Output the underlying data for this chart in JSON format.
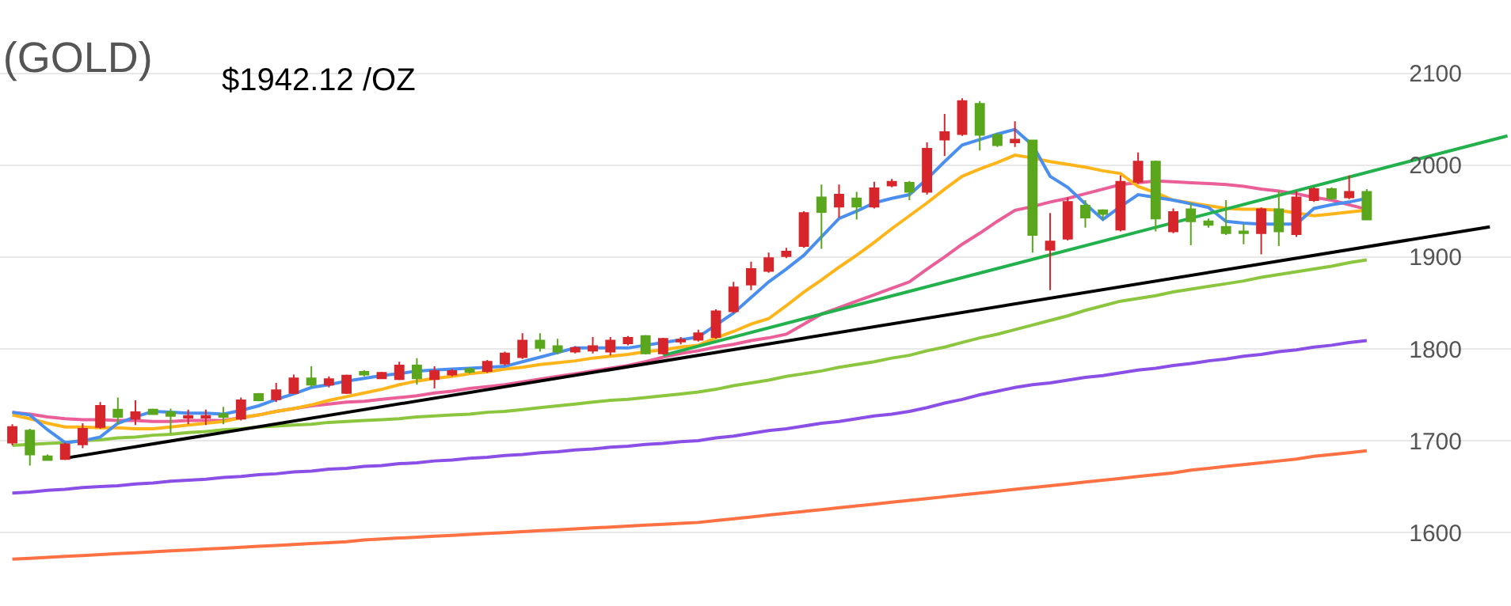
{
  "chart_data": {
    "type": "candlestick",
    "title": "(GOLD)",
    "annotations": [
      "$1942.12 /OZ"
    ],
    "categories": [
      null,
      null,
      null,
      null,
      null,
      null,
      null,
      null,
      null,
      null,
      null,
      null,
      null,
      null,
      null,
      null,
      null,
      null,
      null,
      null,
      null,
      null,
      null,
      null,
      null,
      null,
      null,
      null,
      null,
      null,
      null,
      null,
      null,
      null,
      null,
      null,
      null,
      null,
      null,
      null,
      null,
      null,
      null,
      null,
      null,
      null,
      null,
      null,
      null,
      null,
      null,
      null,
      null,
      null,
      null,
      null,
      null,
      null,
      null,
      null,
      null,
      null,
      null,
      null,
      null,
      null,
      null,
      null,
      null,
      null,
      null,
      null,
      null,
      null,
      null,
      null,
      null,
      null,
      null,
      null,
      null,
      null,
      null,
      null,
      null,
      null
    ],
    "ohlc": [
      [
        1698,
        1718,
        1695,
        1715
      ],
      [
        1711,
        1713,
        1673,
        1685
      ],
      [
        1683,
        1685,
        1678,
        1679
      ],
      [
        1680,
        1698,
        1679,
        1696
      ],
      [
        1696,
        1719,
        1692,
        1713
      ],
      [
        1715,
        1742,
        1713,
        1738
      ],
      [
        1734,
        1747,
        1718,
        1726
      ],
      [
        1724,
        1744,
        1717,
        1731
      ],
      [
        1734,
        1735,
        1728,
        1729
      ],
      [
        1731,
        1735,
        1708,
        1727
      ],
      [
        1725,
        1734,
        1718,
        1727
      ],
      [
        1725,
        1734,
        1717,
        1727
      ],
      [
        1729,
        1737,
        1718,
        1726
      ],
      [
        1724,
        1747,
        1722,
        1744
      ],
      [
        1751,
        1752,
        1743,
        1744
      ],
      [
        1745,
        1763,
        1742,
        1755
      ],
      [
        1752,
        1772,
        1751,
        1768
      ],
      [
        1768,
        1781,
        1758,
        1761
      ],
      [
        1761,
        1770,
        1758,
        1767
      ],
      [
        1752,
        1772,
        1751,
        1771
      ],
      [
        1775,
        1777,
        1770,
        1772
      ],
      [
        1768,
        1775,
        1767,
        1774
      ],
      [
        1767,
        1786,
        1766,
        1782
      ],
      [
        1782,
        1790,
        1761,
        1768
      ],
      [
        1767,
        1781,
        1757,
        1776
      ],
      [
        1772,
        1778,
        1770,
        1776
      ],
      [
        1778,
        1780,
        1773,
        1775
      ],
      [
        1776,
        1788,
        1774,
        1786
      ],
      [
        1784,
        1797,
        1782,
        1795
      ],
      [
        1791,
        1817,
        1789,
        1809
      ],
      [
        1809,
        1817,
        1797,
        1801
      ],
      [
        1803,
        1811,
        1794,
        1797
      ],
      [
        1797,
        1803,
        1795,
        1801
      ],
      [
        1798,
        1813,
        1795,
        1803
      ],
      [
        1797,
        1813,
        1793,
        1809
      ],
      [
        1806,
        1814,
        1804,
        1812
      ],
      [
        1814,
        1815,
        1794,
        1795
      ],
      [
        1795,
        1812,
        1794,
        1811
      ],
      [
        1808,
        1813,
        1805,
        1810
      ],
      [
        1810,
        1821,
        1808,
        1817
      ],
      [
        1813,
        1843,
        1811,
        1841
      ],
      [
        1841,
        1873,
        1839,
        1867
      ],
      [
        1870,
        1895,
        1864,
        1887
      ],
      [
        1885,
        1905,
        1883,
        1899
      ],
      [
        1901,
        1910,
        1899,
        1906
      ],
      [
        1912,
        1950,
        1910,
        1948
      ],
      [
        1965,
        1979,
        1909,
        1949
      ],
      [
        1955,
        1979,
        1943,
        1968
      ],
      [
        1964,
        1971,
        1941,
        1955
      ],
      [
        1955,
        1982,
        1953,
        1975
      ],
      [
        1978,
        1985,
        1976,
        1982
      ],
      [
        1981,
        1983,
        1962,
        1971
      ],
      [
        1971,
        2025,
        1968,
        2018
      ],
      [
        2028,
        2056,
        2010,
        2036
      ],
      [
        2034,
        2073,
        2032,
        2070
      ],
      [
        2067,
        2070,
        2016,
        2033
      ],
      [
        2033,
        2035,
        2020,
        2022
      ],
      [
        2025,
        2048,
        2020,
        2028
      ],
      [
        2027,
        2028,
        1905,
        1924
      ],
      [
        1908,
        1948,
        1864,
        1917
      ],
      [
        1920,
        1965,
        1918,
        1960
      ],
      [
        1956,
        1962,
        1932,
        1943
      ],
      [
        1951,
        1952,
        1941,
        1947
      ],
      [
        1930,
        1989,
        1928,
        1982
      ],
      [
        1982,
        2014,
        1980,
        2004
      ],
      [
        2004,
        2005,
        1928,
        1942
      ],
      [
        1928,
        1953,
        1926,
        1949
      ],
      [
        1952,
        1959,
        1913,
        1939
      ],
      [
        1939,
        1942,
        1932,
        1935
      ],
      [
        1933,
        1962,
        1924,
        1926
      ],
      [
        1928,
        1936,
        1914,
        1926
      ],
      [
        1926,
        1954,
        1903,
        1952
      ],
      [
        1952,
        1972,
        1912,
        1928
      ],
      [
        1925,
        1972,
        1922,
        1965
      ],
      [
        1962,
        1976,
        1960,
        1974
      ],
      [
        1974,
        1976,
        1962,
        1964
      ],
      [
        1965,
        1989,
        1963,
        1971
      ],
      [
        1971,
        1974,
        1940,
        1941
      ],
      null,
      null,
      null,
      null,
      null,
      null,
      null,
      null
    ],
    "colors": [
      "#d7262b",
      "#5aa61c",
      "#5aa61c",
      "#d7262b",
      "#d7262b",
      "#d7262b",
      "#5aa61c",
      "#d7262b",
      "#5aa61c",
      "#5aa61c",
      "#d7262b",
      "#d7262b",
      "#5aa61c",
      "#d7262b",
      "#5aa61c",
      "#d7262b",
      "#d7262b",
      "#5aa61c",
      "#d7262b",
      "#d7262b",
      "#5aa61c",
      "#d7262b",
      "#d7262b",
      "#5aa61c",
      "#d7262b",
      "#d7262b",
      "#5aa61c",
      "#d7262b",
      "#d7262b",
      "#d7262b",
      "#5aa61c",
      "#5aa61c",
      "#d7262b",
      "#d7262b",
      "#d7262b",
      "#d7262b",
      "#5aa61c",
      "#d7262b",
      "#d7262b",
      "#d7262b",
      "#d7262b",
      "#d7262b",
      "#d7262b",
      "#d7262b",
      "#d7262b",
      "#d7262b",
      "#5aa61c",
      "#d7262b",
      "#5aa61c",
      "#d7262b",
      "#d7262b",
      "#5aa61c",
      "#d7262b",
      "#d7262b",
      "#d7262b",
      "#5aa61c",
      "#5aa61c",
      "#d7262b",
      "#5aa61c",
      "#d7262b",
      "#d7262b",
      "#5aa61c",
      "#5aa61c",
      "#d7262b",
      "#d7262b",
      "#5aa61c",
      "#d7262b",
      "#5aa61c",
      "#5aa61c",
      "#5aa61c",
      "#5aa61c",
      "#d7262b",
      "#5aa61c",
      "#d7262b",
      "#d7262b",
      "#5aa61c",
      "#d7262b",
      "#5aa61c",
      null,
      null,
      null,
      null,
      null,
      null,
      null,
      null
    ],
    "series": [
      {
        "type": "line",
        "color": "#ff7043",
        "values": [
          1571,
          1572,
          1573,
          1574,
          1575,
          1576,
          1577,
          1578,
          1579,
          1580,
          1581,
          1582,
          1583,
          1584,
          1585,
          1586,
          1587,
          1588,
          1589,
          1590,
          1592,
          1593,
          1594,
          1595,
          1596,
          1597,
          1598,
          1599,
          1600,
          1601,
          1602,
          1603,
          1604,
          1605,
          1606,
          1607,
          1608,
          1609,
          1610,
          1611,
          1613,
          1615,
          1617,
          1619,
          1621,
          1623,
          1625,
          1627,
          1629,
          1631,
          1633,
          1635,
          1637,
          1639,
          1641,
          1643,
          1645,
          1647,
          1649,
          1651,
          1653,
          1655,
          1657,
          1659,
          1661,
          1663,
          1665,
          1668,
          1670,
          1672,
          1674,
          1676,
          1678,
          1680,
          1683,
          1685,
          1687,
          1689,
          null,
          null,
          null,
          null,
          null,
          null,
          null,
          null
        ]
      },
      {
        "type": "line",
        "color": "#8a4fe6",
        "values": [
          1643,
          1644,
          1646,
          1647,
          1649,
          1650,
          1651,
          1653,
          1654,
          1656,
          1657,
          1658,
          1660,
          1661,
          1663,
          1664,
          1666,
          1667,
          1669,
          1670,
          1672,
          1673,
          1675,
          1676,
          1678,
          1679,
          1681,
          1682,
          1684,
          1685,
          1687,
          1688,
          1690,
          1691,
          1693,
          1694,
          1696,
          1697,
          1699,
          1700,
          1703,
          1705,
          1708,
          1711,
          1713,
          1716,
          1719,
          1721,
          1724,
          1727,
          1729,
          1732,
          1736,
          1741,
          1745,
          1750,
          1754,
          1758,
          1761,
          1763,
          1766,
          1769,
          1771,
          1774,
          1777,
          1779,
          1782,
          1784,
          1787,
          1789,
          1792,
          1794,
          1797,
          1799,
          1802,
          1804,
          1807,
          1809,
          null,
          null,
          null,
          null,
          null,
          null,
          null,
          null
        ]
      },
      {
        "type": "line",
        "color": "#8cc63f",
        "values": [
          1695,
          1696,
          1697,
          1698,
          1700,
          1701,
          1703,
          1704,
          1706,
          1707,
          1709,
          1710,
          1712,
          1713,
          1715,
          1716,
          1717,
          1718,
          1720,
          1721,
          1722,
          1723,
          1724,
          1726,
          1727,
          1728,
          1729,
          1731,
          1732,
          1734,
          1736,
          1738,
          1740,
          1742,
          1744,
          1745,
          1747,
          1749,
          1751,
          1753,
          1756,
          1760,
          1763,
          1766,
          1770,
          1773,
          1776,
          1780,
          1783,
          1786,
          1790,
          1793,
          1798,
          1802,
          1807,
          1812,
          1816,
          1821,
          1826,
          1831,
          1836,
          1842,
          1847,
          1852,
          1855,
          1858,
          1862,
          1865,
          1868,
          1871,
          1874,
          1878,
          1881,
          1884,
          1887,
          1890,
          1894,
          1897,
          null,
          null,
          null,
          null,
          null,
          null,
          null,
          null
        ]
      },
      {
        "type": "line",
        "color": "#ea5f98",
        "values": [
          1731,
          1729,
          1726,
          1724,
          1723,
          1723,
          1722,
          1722,
          1721,
          1721,
          1722,
          1722,
          1722,
          1725,
          1728,
          1732,
          1735,
          1738,
          1740,
          1742,
          1743,
          1745,
          1747,
          1749,
          1752,
          1754,
          1757,
          1759,
          1761,
          1764,
          1767,
          1770,
          1773,
          1776,
          1779,
          1782,
          1786,
          1791,
          1795,
          1798,
          1802,
          1805,
          1809,
          1812,
          1816,
          1827,
          1838,
          1845,
          1852,
          1859,
          1866,
          1873,
          1887,
          1900,
          1914,
          1926,
          1939,
          1951,
          1955,
          1960,
          1964,
          1969,
          1974,
          1979,
          1981,
          1983,
          1982,
          1981,
          1980,
          1979,
          1977,
          1974,
          1972,
          1969,
          1965,
          1962,
          1957,
          1952,
          null,
          null,
          null,
          null,
          null,
          null,
          null,
          null
        ]
      },
      {
        "type": "line",
        "color": "#ffb51a",
        "values": [
          1728,
          1724,
          1719,
          1715,
          1715,
          1714,
          1714,
          1713,
          1713,
          1715,
          1717,
          1719,
          1721,
          1725,
          1728,
          1732,
          1735,
          1739,
          1744,
          1748,
          1752,
          1756,
          1761,
          1765,
          1768,
          1770,
          1773,
          1775,
          1778,
          1780,
          1783,
          1785,
          1787,
          1790,
          1792,
          1794,
          1797,
          1799,
          1802,
          1804,
          1812,
          1819,
          1827,
          1833,
          1847,
          1862,
          1875,
          1889,
          1902,
          1916,
          1931,
          1945,
          1959,
          1974,
          1988,
          1996,
          2003,
          2011,
          2008,
          2004,
          2001,
          1998,
          1994,
          1991,
          1977,
          1970,
          1962,
          1959,
          1956,
          1953,
          1952,
          1952,
          1951,
          1948,
          1945,
          1947,
          1949,
          1951,
          null,
          null,
          null,
          null,
          null,
          null,
          null,
          null
        ]
      },
      {
        "type": "line",
        "color": "#4a8ff0",
        "values": [
          1731,
          1728,
          1712,
          1698,
          1700,
          1704,
          1719,
          1726,
          1732,
          1731,
          1730,
          1730,
          1729,
          1733,
          1738,
          1745,
          1751,
          1758,
          1761,
          1765,
          1768,
          1771,
          1773,
          1776,
          1777,
          1778,
          1779,
          1780,
          1781,
          1786,
          1791,
          1796,
          1801,
          1801,
          1801,
          1801,
          1804,
          1807,
          1810,
          1813,
          1826,
          1839,
          1856,
          1873,
          1887,
          1902,
          1922,
          1942,
          1950,
          1959,
          1964,
          1968,
          1985,
          2004,
          2022,
          2028,
          2034,
          2039,
          2022,
          1988,
          1976,
          1958,
          1941,
          1955,
          1968,
          1965,
          1962,
          1958,
          1954,
          1939,
          1937,
          1936,
          1936,
          1936,
          1953,
          1957,
          1960,
          1964,
          null,
          null,
          null,
          null,
          null,
          null,
          null,
          null
        ]
      },
      {
        "type": "line",
        "color": "#000000",
        "values": [
          null,
          null,
          null,
          1681,
          null,
          null,
          null,
          null,
          null,
          null,
          null,
          null,
          null,
          null,
          null,
          null,
          null,
          null,
          null,
          null,
          null,
          null,
          null,
          null,
          null,
          null,
          null,
          null,
          null,
          null,
          null,
          null,
          null,
          null,
          null,
          null,
          null,
          null,
          null,
          null,
          null,
          null,
          null,
          null,
          null,
          null,
          null,
          null,
          null,
          null,
          null,
          null,
          null,
          null,
          null,
          null,
          null,
          null,
          null,
          null,
          null,
          null,
          null,
          null,
          null,
          null,
          null,
          null,
          null,
          null,
          null,
          null,
          null,
          null,
          null,
          null,
          null,
          null,
          null,
          null,
          null,
          null,
          null,
          null,
          1933,
          null
        ]
      },
      {
        "type": "line",
        "color": "#22b14c",
        "values": [
          null,
          null,
          null,
          null,
          null,
          null,
          null,
          null,
          null,
          null,
          null,
          null,
          null,
          null,
          null,
          null,
          null,
          null,
          null,
          null,
          null,
          null,
          null,
          null,
          null,
          null,
          null,
          null,
          null,
          null,
          null,
          null,
          null,
          null,
          null,
          null,
          null,
          1793,
          null,
          null,
          null,
          null,
          null,
          null,
          null,
          null,
          null,
          null,
          null,
          null,
          null,
          null,
          null,
          null,
          null,
          null,
          null,
          null,
          null,
          null,
          null,
          null,
          null,
          null,
          null,
          null,
          null,
          null,
          null,
          null,
          null,
          null,
          null,
          null,
          null,
          null,
          null,
          null,
          null,
          null,
          null,
          null,
          null,
          null,
          null,
          2032
        ]
      }
    ],
    "ylim": [
      1520,
      2180
    ],
    "yticks": [
      1600,
      1700,
      1800,
      1900,
      2000,
      2100
    ],
    "grid": "y",
    "tick_labels": "y",
    "marker": "none"
  }
}
